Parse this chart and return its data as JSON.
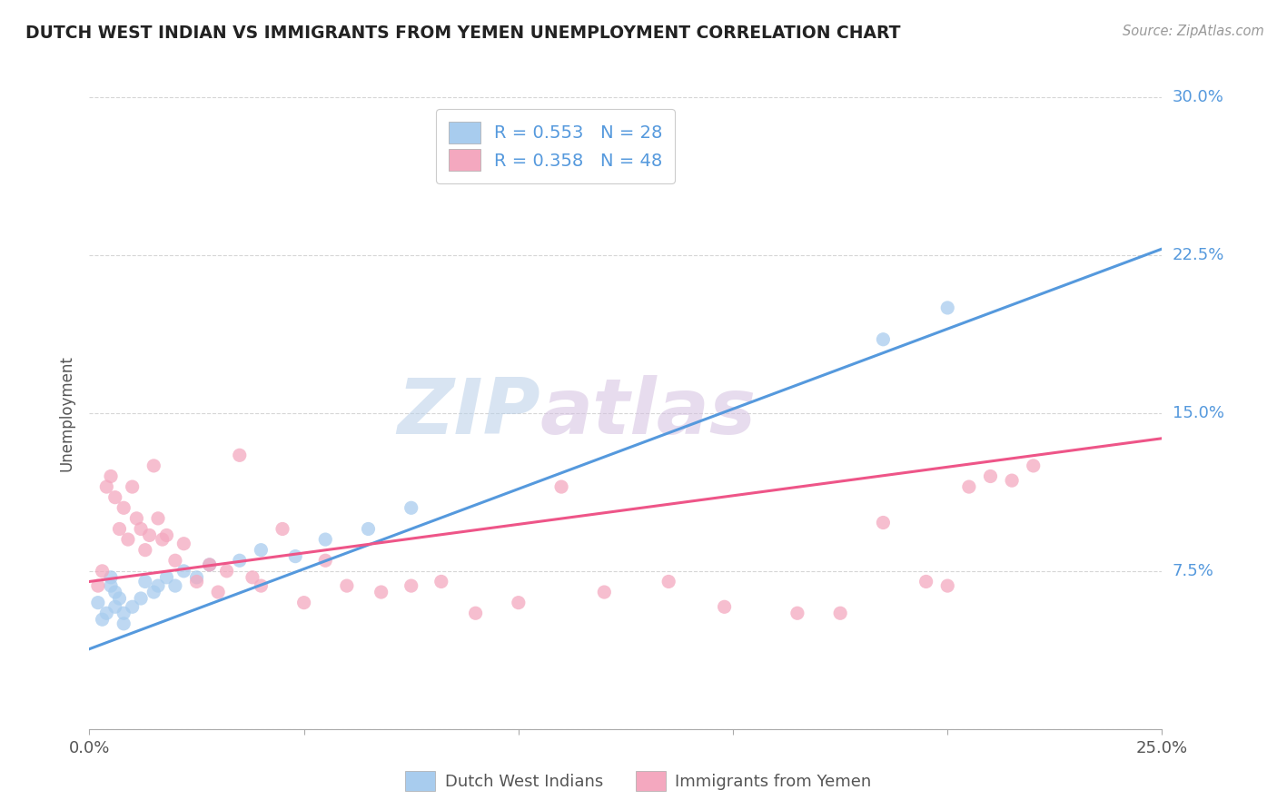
{
  "title": "DUTCH WEST INDIAN VS IMMIGRANTS FROM YEMEN UNEMPLOYMENT CORRELATION CHART",
  "source_text": "Source: ZipAtlas.com",
  "ylabel": "Unemployment",
  "xlim": [
    0.0,
    0.25
  ],
  "ylim": [
    0.0,
    0.3
  ],
  "xticks": [
    0.0,
    0.05,
    0.1,
    0.15,
    0.2,
    0.25
  ],
  "yticks": [
    0.0,
    0.075,
    0.15,
    0.225,
    0.3
  ],
  "xtick_labels": [
    "0.0%",
    "",
    "",
    "",
    "",
    "25.0%"
  ],
  "ytick_labels": [
    "",
    "7.5%",
    "15.0%",
    "22.5%",
    "30.0%"
  ],
  "blue_color": "#a8ccee",
  "pink_color": "#f4a8bf",
  "blue_line_color": "#5599dd",
  "pink_line_color": "#ee5588",
  "legend_r1": "R = 0.553",
  "legend_n1": "N = 28",
  "legend_r2": "R = 0.358",
  "legend_n2": "N = 48",
  "watermark_zip": "ZIP",
  "watermark_atlas": "atlas",
  "blue_scatter_x": [
    0.002,
    0.003,
    0.004,
    0.005,
    0.005,
    0.006,
    0.006,
    0.007,
    0.008,
    0.008,
    0.01,
    0.012,
    0.013,
    0.015,
    0.016,
    0.018,
    0.02,
    0.022,
    0.025,
    0.028,
    0.035,
    0.04,
    0.048,
    0.055,
    0.065,
    0.075,
    0.185,
    0.2
  ],
  "blue_scatter_y": [
    0.06,
    0.052,
    0.055,
    0.068,
    0.072,
    0.065,
    0.058,
    0.062,
    0.055,
    0.05,
    0.058,
    0.062,
    0.07,
    0.065,
    0.068,
    0.072,
    0.068,
    0.075,
    0.072,
    0.078,
    0.08,
    0.085,
    0.082,
    0.09,
    0.095,
    0.105,
    0.185,
    0.2
  ],
  "pink_scatter_x": [
    0.002,
    0.003,
    0.004,
    0.005,
    0.006,
    0.007,
    0.008,
    0.009,
    0.01,
    0.011,
    0.012,
    0.013,
    0.014,
    0.015,
    0.016,
    0.017,
    0.018,
    0.02,
    0.022,
    0.025,
    0.028,
    0.03,
    0.032,
    0.035,
    0.038,
    0.04,
    0.045,
    0.05,
    0.055,
    0.06,
    0.068,
    0.075,
    0.082,
    0.09,
    0.1,
    0.11,
    0.12,
    0.135,
    0.148,
    0.165,
    0.175,
    0.185,
    0.195,
    0.2,
    0.205,
    0.21,
    0.215,
    0.22
  ],
  "pink_scatter_y": [
    0.068,
    0.075,
    0.115,
    0.12,
    0.11,
    0.095,
    0.105,
    0.09,
    0.115,
    0.1,
    0.095,
    0.085,
    0.092,
    0.125,
    0.1,
    0.09,
    0.092,
    0.08,
    0.088,
    0.07,
    0.078,
    0.065,
    0.075,
    0.13,
    0.072,
    0.068,
    0.095,
    0.06,
    0.08,
    0.068,
    0.065,
    0.068,
    0.07,
    0.055,
    0.06,
    0.115,
    0.065,
    0.07,
    0.058,
    0.055,
    0.055,
    0.098,
    0.07,
    0.068,
    0.115,
    0.12,
    0.118,
    0.125
  ],
  "blue_line_x": [
    0.0,
    0.25
  ],
  "blue_line_y_start": 0.038,
  "blue_line_y_end": 0.228,
  "pink_line_x": [
    0.0,
    0.25
  ],
  "pink_line_y_start": 0.07,
  "pink_line_y_end": 0.138
}
